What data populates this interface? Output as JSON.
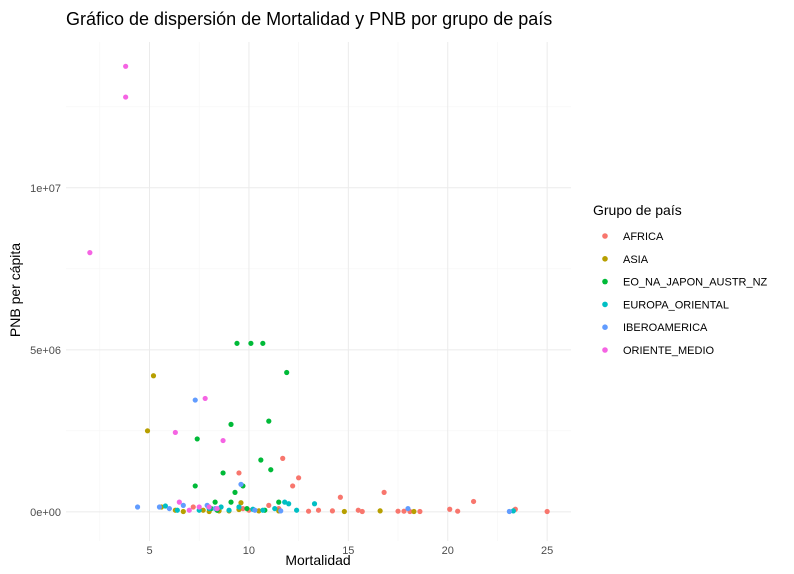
{
  "chart_data": {
    "type": "scatter",
    "title": "Gráfico de dispersión de Mortalidad y PNB por grupo de país",
    "xlabel": "Mortalidad",
    "ylabel": "PNB per cápita",
    "xlim": [
      0.8,
      26.2
    ],
    "ylim": [
      -900000,
      14500000
    ],
    "x_ticks": [
      5,
      10,
      15,
      20,
      25
    ],
    "x_tick_labels": [
      "5",
      "10",
      "15",
      "20",
      "25"
    ],
    "y_ticks": [
      0,
      5000000,
      10000000
    ],
    "y_tick_labels": [
      "0e+00",
      "5e+06",
      "1e+07"
    ],
    "grid": true,
    "legend": {
      "title": "Grupo de país",
      "position": "right"
    },
    "series": [
      {
        "name": "AFRICA",
        "color": "#F8766D",
        "points": [
          [
            7.2,
            150000
          ],
          [
            9.5,
            1200000
          ],
          [
            10.0,
            50000
          ],
          [
            11.5,
            100000
          ],
          [
            11.7,
            1650000
          ],
          [
            12.2,
            800000
          ],
          [
            12.5,
            1050000
          ],
          [
            13.5,
            50000
          ],
          [
            14.2,
            30000
          ],
          [
            14.6,
            450000
          ],
          [
            15.5,
            50000
          ],
          [
            16.8,
            600000
          ],
          [
            17.5,
            20000
          ],
          [
            17.8,
            20000
          ],
          [
            18.1,
            10000
          ],
          [
            18.6,
            10000
          ],
          [
            20.1,
            80000
          ],
          [
            20.5,
            20000
          ],
          [
            21.3,
            320000
          ],
          [
            23.4,
            80000
          ],
          [
            25.0,
            10000
          ],
          [
            11.0,
            200000
          ],
          [
            13.0,
            20000
          ],
          [
            9.7,
            100000
          ],
          [
            15.7,
            10000
          ]
        ]
      },
      {
        "name": "ASIA",
        "color": "#B79F00",
        "points": [
          [
            4.9,
            2500000
          ],
          [
            5.2,
            4200000
          ],
          [
            5.6,
            150000
          ],
          [
            6.3,
            50000
          ],
          [
            6.7,
            10000
          ],
          [
            7.7,
            50000
          ],
          [
            8.5,
            30000
          ],
          [
            9.5,
            70000
          ],
          [
            9.6,
            280000
          ],
          [
            10.5,
            30000
          ],
          [
            11.5,
            30000
          ],
          [
            14.8,
            10000
          ],
          [
            16.6,
            30000
          ],
          [
            18.3,
            10000
          ],
          [
            9.0,
            30000
          ],
          [
            8.0,
            10000
          ]
        ]
      },
      {
        "name": "EO_NA_JAPON_AUSTR_NZ",
        "color": "#00BA38",
        "points": [
          [
            7.3,
            800000
          ],
          [
            7.4,
            2250000
          ],
          [
            8.1,
            100000
          ],
          [
            8.3,
            300000
          ],
          [
            8.7,
            1200000
          ],
          [
            9.1,
            2700000
          ],
          [
            9.1,
            300000
          ],
          [
            9.3,
            600000
          ],
          [
            9.4,
            5200000
          ],
          [
            9.7,
            800000
          ],
          [
            10.1,
            5200000
          ],
          [
            10.6,
            1600000
          ],
          [
            10.7,
            5200000
          ],
          [
            11.0,
            2800000
          ],
          [
            11.1,
            1300000
          ],
          [
            11.5,
            300000
          ],
          [
            11.9,
            4300000
          ],
          [
            9.9,
            100000
          ],
          [
            8.4,
            50000
          ],
          [
            10.8,
            50000
          ]
        ]
      },
      {
        "name": "EUROPA_ORIENTAL",
        "color": "#00BFC4",
        "points": [
          [
            5.8,
            180000
          ],
          [
            6.4,
            50000
          ],
          [
            7.5,
            50000
          ],
          [
            8.0,
            100000
          ],
          [
            8.6,
            150000
          ],
          [
            9.0,
            50000
          ],
          [
            9.5,
            150000
          ],
          [
            10.2,
            80000
          ],
          [
            10.7,
            50000
          ],
          [
            11.3,
            100000
          ],
          [
            11.8,
            300000
          ],
          [
            12.0,
            250000
          ],
          [
            12.4,
            50000
          ],
          [
            13.3,
            250000
          ],
          [
            23.3,
            30000
          ]
        ]
      },
      {
        "name": "IBEROAMERICA",
        "color": "#619CFF",
        "points": [
          [
            4.4,
            150000
          ],
          [
            5.5,
            150000
          ],
          [
            6.0,
            100000
          ],
          [
            6.7,
            200000
          ],
          [
            7.3,
            3450000
          ],
          [
            7.9,
            200000
          ],
          [
            8.3,
            100000
          ],
          [
            9.6,
            850000
          ],
          [
            10.3,
            50000
          ],
          [
            11.6,
            30000
          ],
          [
            18.0,
            100000
          ],
          [
            23.1,
            10000
          ]
        ]
      },
      {
        "name": "ORIENTE_MEDIO",
        "color": "#F564E3",
        "points": [
          [
            2.0,
            8000000
          ],
          [
            3.8,
            12800000
          ],
          [
            3.8,
            13750000
          ],
          [
            6.3,
            2450000
          ],
          [
            6.5,
            300000
          ],
          [
            7.5,
            150000
          ],
          [
            7.8,
            3500000
          ],
          [
            8.0,
            150000
          ],
          [
            8.4,
            100000
          ],
          [
            8.7,
            2200000
          ],
          [
            7.0,
            50000
          ]
        ]
      }
    ]
  }
}
